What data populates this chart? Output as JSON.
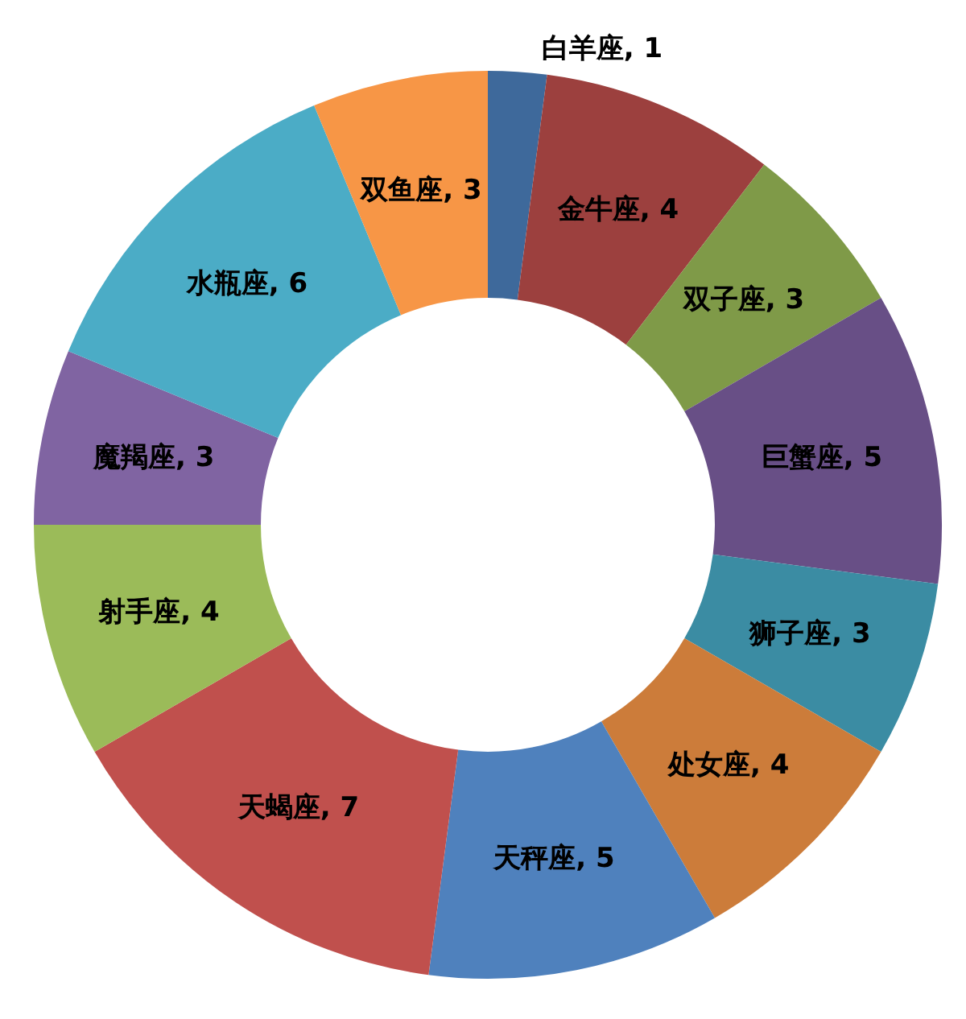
{
  "chart_data": {
    "type": "donut",
    "categories": [
      "白羊座",
      "金牛座",
      "双子座",
      "巨蟹座",
      "狮子座",
      "处女座",
      "天秤座",
      "天蝎座",
      "射手座",
      "魔羯座",
      "水瓶座",
      "双鱼座"
    ],
    "values": [
      1,
      4,
      3,
      5,
      3,
      4,
      5,
      7,
      4,
      3,
      6,
      3
    ],
    "value_labels": [
      ", 1",
      ", 4",
      ", 3",
      ", 5",
      ", 3",
      ", 4",
      ", 5",
      ", 7",
      ", 4",
      ", 3",
      ", 6",
      ", 3"
    ],
    "colors": [
      "#3e699b",
      "#9c403e",
      "#7f9a48",
      "#684f86",
      "#3b8ca3",
      "#cc7c3a",
      "#4f81bd",
      "#c0504d",
      "#9bbb59",
      "#8064a2",
      "#4bacc6",
      "#f79646"
    ]
  }
}
